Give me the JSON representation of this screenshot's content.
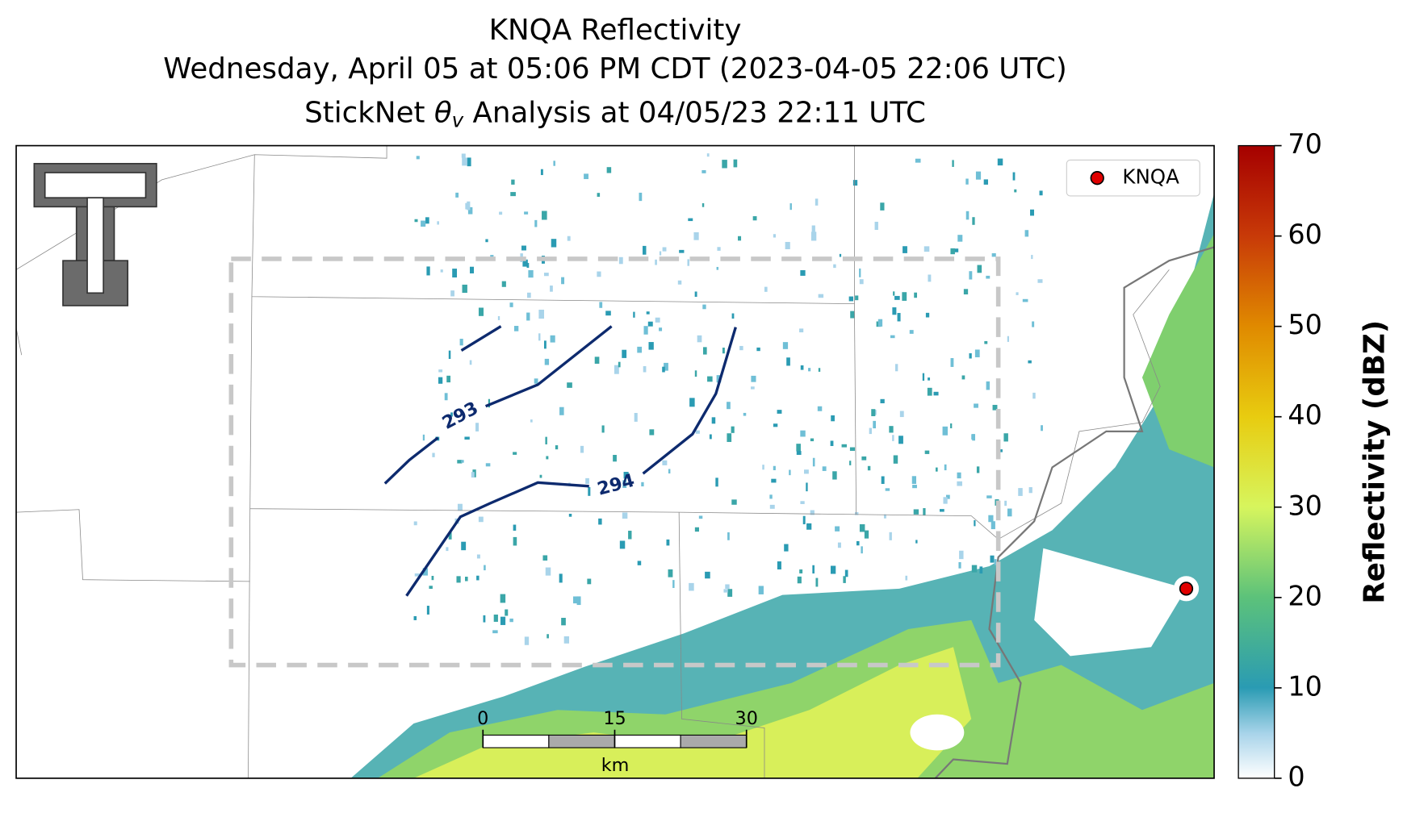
{
  "header": {
    "title": "KNQA Reflectivity",
    "subtitle": "Wednesday, April 05 at 05:06 PM CDT (2023-04-05 22:06 UTC)",
    "analysis": {
      "prefix": "StickNet",
      "symbol": "θ",
      "subscript": "v",
      "suffix": "Analysis at 04/05/23 22:11 UTC"
    }
  },
  "legend": {
    "label": "KNQA"
  },
  "contours": [
    293,
    294
  ],
  "scale_bar": {
    "ticks": [
      0,
      15,
      30
    ],
    "lim": [
      0,
      30
    ],
    "unit": "km"
  },
  "colorbar": {
    "label": "Reflectivity (dBZ)",
    "lim": [
      0,
      70
    ],
    "ticks": [
      0,
      10,
      20,
      30,
      40,
      50,
      60,
      70
    ]
  }
}
